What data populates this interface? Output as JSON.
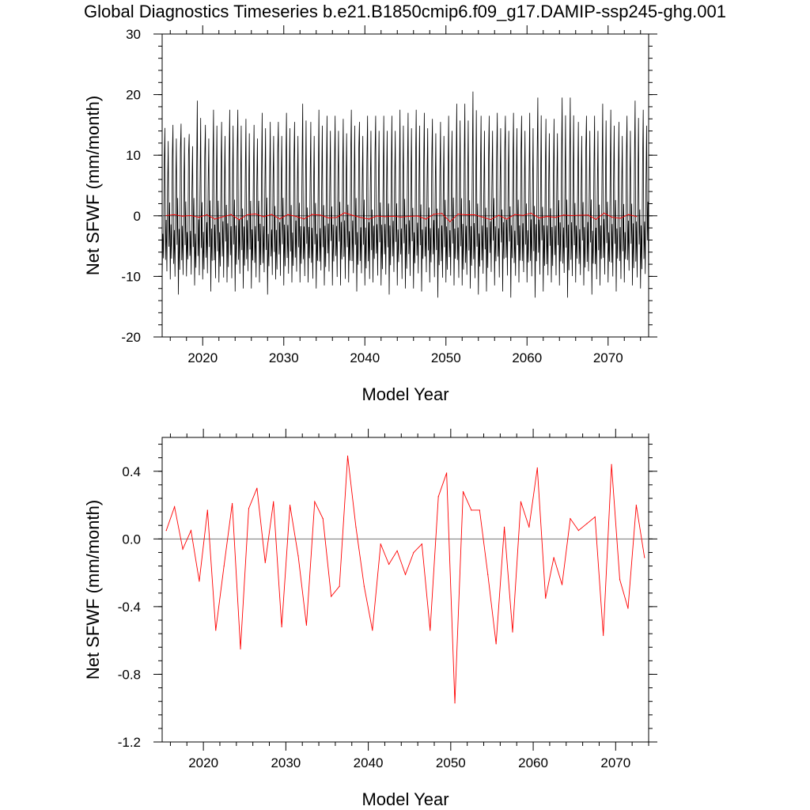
{
  "title": "Global Diagnostics Timeseries b.e21.B1850cmip6.f09_g17.DAMIP-ssp245-ghg.001",
  "chart_data": [
    {
      "type": "line",
      "panel": "top",
      "xlabel": "Model Year",
      "ylabel": "Net SFWF (mm/month)",
      "xlim": [
        2015,
        2075
      ],
      "ylim": [
        -20,
        30
      ],
      "xticks": [
        2020,
        2030,
        2040,
        2050,
        2060,
        2070
      ],
      "yticks": [
        -20,
        -10,
        0,
        10,
        20,
        30
      ],
      "ytick_labels": [
        "-20",
        "-10",
        "0",
        "10",
        "20",
        "30"
      ],
      "grid": false,
      "zero_line": true,
      "series": [
        {
          "color": "#000000",
          "note_monthly": true,
          "annual_peaks": [
            14.5,
            15,
            15.2,
            13.5,
            19,
            15,
            17.5,
            15.5,
            17.5,
            17.5,
            16,
            15,
            17,
            15.5,
            15.5,
            17,
            15.5,
            18.5,
            15.5,
            17.5,
            16.5,
            16.5,
            16,
            17.5,
            15.5,
            16.5,
            16.5,
            16.5,
            16.5,
            17.5,
            17,
            17.5,
            17,
            16,
            15.5,
            16.5,
            18.5,
            18.5,
            20.5,
            16.5,
            16.5,
            17,
            16.5,
            17,
            16.5,
            17,
            19.5,
            16,
            16,
            19.5,
            19.5,
            15.5,
            16.5,
            16.5,
            18.5,
            17.5,
            15.5,
            16.5,
            19,
            17.5,
            18
          ],
          "annual_troughs": [
            -10.5,
            -10.5,
            -13,
            -10,
            -11.5,
            -10.5,
            -12.5,
            -11,
            -11,
            -12.5,
            -12,
            -12,
            -11,
            -13,
            -10.5,
            -11.5,
            -11,
            -11,
            -11,
            -12,
            -11.5,
            -11.5,
            -11.5,
            -11,
            -12.5,
            -11.5,
            -11,
            -11.5,
            -13,
            -11.5,
            -12,
            -12,
            -12.5,
            -11,
            -13.5,
            -11,
            -11.5,
            -11.5,
            -12,
            -13,
            -12.5,
            -11.5,
            -12.5,
            -13.5,
            -11,
            -11,
            -13.5,
            -12.5,
            -11,
            -11.5,
            -13.5,
            -11,
            -11.5,
            -13,
            -11.5,
            -11,
            -12.5,
            -11,
            -11.5,
            -12,
            -12.5
          ]
        },
        {
          "color": "#ff0000",
          "annual_mean": true,
          "x": [
            2015.5,
            2016.5,
            2017.5,
            2018.5,
            2019.5,
            2020.5,
            2021.5,
            2022.5,
            2023.5,
            2024.5,
            2025.5,
            2026.5,
            2027.5,
            2028.5,
            2029.5,
            2030.5,
            2031.5,
            2032.5,
            2033.5,
            2034.5,
            2035.5,
            2036.5,
            2037.5,
            2038.5,
            2039.5,
            2040.5,
            2041.5,
            2042.5,
            2043.5,
            2044.5,
            2045.5,
            2046.5,
            2047.5,
            2048.5,
            2049.5,
            2050.5,
            2051.5,
            2052.5,
            2053.5,
            2054.5,
            2055.5,
            2056.5,
            2057.5,
            2058.5,
            2059.5,
            2060.5,
            2061.5,
            2062.5,
            2063.5,
            2064.5,
            2065.5,
            2066.5,
            2067.5,
            2068.5,
            2069.5,
            2070.5,
            2071.5,
            2072.5,
            2073.5
          ],
          "values": [
            0.05,
            0.19,
            -0.06,
            0.05,
            -0.25,
            0.17,
            -0.54,
            -0.16,
            0.21,
            -0.65,
            0.18,
            0.3,
            -0.14,
            0.22,
            -0.52,
            0.2,
            -0.1,
            -0.51,
            0.22,
            0.12,
            -0.34,
            -0.28,
            0.49,
            0.07,
            -0.28,
            -0.54,
            -0.03,
            -0.15,
            -0.07,
            -0.21,
            -0.08,
            -0.03,
            -0.54,
            0.25,
            0.39,
            -0.97,
            0.28,
            0.17,
            0.17,
            -0.21,
            -0.62,
            0.07,
            -0.55,
            0.22,
            0.07,
            0.42,
            -0.35,
            -0.11,
            -0.27,
            0.12,
            0.05,
            0.09,
            0.13,
            -0.57,
            0.44,
            -0.24,
            -0.41,
            0.2,
            -0.11
          ]
        }
      ]
    },
    {
      "type": "line",
      "panel": "bottom",
      "xlabel": "Model Year",
      "ylabel": "Net SFWF (mm/month)",
      "xlim": [
        2015,
        2074
      ],
      "ylim": [
        -1.2,
        0.6
      ],
      "xticks": [
        2020,
        2030,
        2040,
        2050,
        2060,
        2070
      ],
      "yticks": [
        -1.2,
        -0.8,
        -0.4,
        0.0,
        0.4
      ],
      "ytick_labels": [
        "-1.2",
        "-0.8",
        "-0.4",
        "0.0",
        "0.4"
      ],
      "grid": false,
      "zero_line": true,
      "series": [
        {
          "color": "#ff0000",
          "x": [
            2015.5,
            2016.5,
            2017.5,
            2018.5,
            2019.5,
            2020.5,
            2021.5,
            2022.5,
            2023.5,
            2024.5,
            2025.5,
            2026.5,
            2027.5,
            2028.5,
            2029.5,
            2030.5,
            2031.5,
            2032.5,
            2033.5,
            2034.5,
            2035.5,
            2036.5,
            2037.5,
            2038.5,
            2039.5,
            2040.5,
            2041.5,
            2042.5,
            2043.5,
            2044.5,
            2045.5,
            2046.5,
            2047.5,
            2048.5,
            2049.5,
            2050.5,
            2051.5,
            2052.5,
            2053.5,
            2054.5,
            2055.5,
            2056.5,
            2057.5,
            2058.5,
            2059.5,
            2060.5,
            2061.5,
            2062.5,
            2063.5,
            2064.5,
            2065.5,
            2066.5,
            2067.5,
            2068.5,
            2069.5,
            2070.5,
            2071.5,
            2072.5,
            2073.5
          ],
          "values": [
            0.05,
            0.19,
            -0.06,
            0.05,
            -0.25,
            0.17,
            -0.54,
            -0.16,
            0.21,
            -0.65,
            0.18,
            0.3,
            -0.14,
            0.22,
            -0.52,
            0.2,
            -0.1,
            -0.51,
            0.22,
            0.12,
            -0.34,
            -0.28,
            0.49,
            0.07,
            -0.28,
            -0.54,
            -0.03,
            -0.15,
            -0.07,
            -0.21,
            -0.08,
            -0.03,
            -0.54,
            0.25,
            0.39,
            -0.97,
            0.28,
            0.17,
            0.17,
            -0.21,
            -0.62,
            0.07,
            -0.55,
            0.22,
            0.07,
            0.42,
            -0.35,
            -0.11,
            -0.27,
            0.12,
            0.05,
            0.09,
            0.13,
            -0.57,
            0.44,
            -0.24,
            -0.41,
            0.2,
            -0.11
          ]
        }
      ]
    }
  ]
}
